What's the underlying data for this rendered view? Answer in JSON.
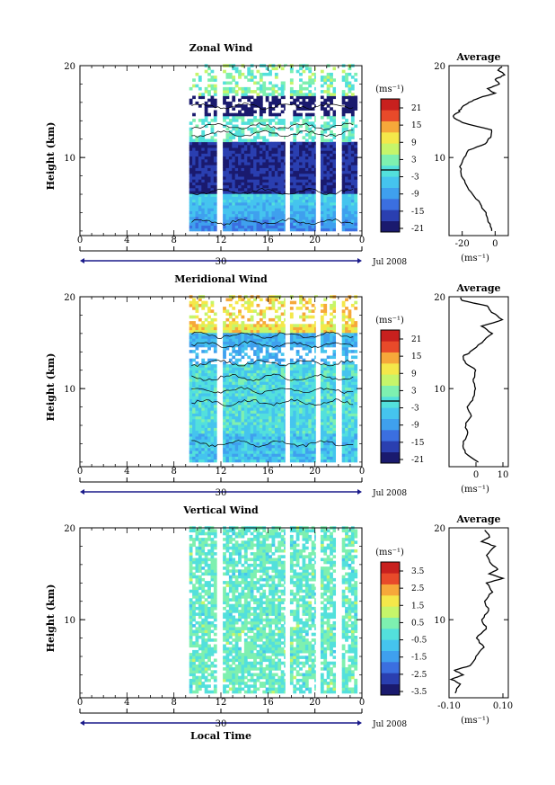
{
  "figure": {
    "xlabel": "Local Time",
    "date_label": "Jul 2008",
    "day_label": "30",
    "y_label": "Height (km)",
    "unit_label": "(ms⁻¹)",
    "avg_title": "Average"
  },
  "chart_data": [
    {
      "type": "heatmap",
      "title": "Zonal Wind",
      "ylabel": "Height (km)",
      "x_ticks": [
        "0",
        "4",
        "8",
        "12",
        "16",
        "20",
        "0"
      ],
      "y_ticks": [
        "20",
        "10"
      ],
      "xlim": [
        0,
        24
      ],
      "ylim": [
        1.5,
        20
      ],
      "colorbar": {
        "unit": "(ms⁻¹)",
        "ticks": [
          "21",
          "15",
          "9",
          "3",
          "-3",
          "-9",
          "-15",
          "-21"
        ],
        "range": [
          -24,
          24
        ]
      },
      "data_start_hour": 9.3,
      "profile": {
        "title": "Average",
        "xlabel": "(ms⁻¹)",
        "x_ticks": [
          "-20",
          "0"
        ],
        "xlim": [
          -28,
          8
        ],
        "heights": [
          2,
          3,
          4,
          5,
          6,
          7,
          8,
          9,
          10,
          10.8,
          11.5,
          12.2,
          13,
          13.8,
          14.5,
          15,
          15.5,
          16,
          16.5,
          17,
          17.5,
          18,
          18.5,
          19,
          19.5,
          20
        ],
        "values": [
          -2,
          -4,
          -6,
          -9,
          -14,
          -18,
          -20,
          -21,
          -19,
          -16,
          -6,
          -3,
          -2,
          -20,
          -26,
          -22,
          -20,
          -16,
          -10,
          0,
          -5,
          3,
          0,
          6,
          2,
          5
        ]
      }
    },
    {
      "type": "heatmap",
      "title": "Meridional Wind",
      "ylabel": "Height (km)",
      "x_ticks": [
        "0",
        "4",
        "8",
        "12",
        "16",
        "20",
        "0"
      ],
      "y_ticks": [
        "20",
        "10"
      ],
      "xlim": [
        0,
        24
      ],
      "ylim": [
        1.5,
        20
      ],
      "colorbar": {
        "unit": "(ms⁻¹)",
        "ticks": [
          "21",
          "15",
          "9",
          "3",
          "-3",
          "-9",
          "-15",
          "-21"
        ],
        "range": [
          -24,
          24
        ]
      },
      "data_start_hour": 9.3,
      "profile": {
        "title": "Average",
        "xlabel": "(ms⁻¹)",
        "x_ticks": [
          "0",
          "10"
        ],
        "xlim": [
          -10,
          12
        ],
        "heights": [
          2,
          3,
          4,
          5,
          6,
          7,
          8,
          9,
          10,
          11,
          12,
          12.8,
          13.5,
          14,
          15,
          16,
          16.8,
          17.5,
          18.3,
          19,
          19.6,
          20
        ],
        "values": [
          1,
          -4,
          -5,
          -3,
          -4,
          -2,
          -3,
          -1,
          0,
          -1,
          0,
          -4,
          -5,
          -2,
          2,
          6,
          2,
          10,
          6,
          4,
          -5,
          -6
        ]
      }
    },
    {
      "type": "heatmap",
      "title": "Vertical Wind",
      "ylabel": "Height (km)",
      "x_ticks": [
        "0",
        "4",
        "8",
        "12",
        "16",
        "20",
        "0"
      ],
      "y_ticks": [
        "20",
        "10"
      ],
      "xlim": [
        0,
        24
      ],
      "ylim": [
        1.5,
        20
      ],
      "colorbar": {
        "unit": "(ms⁻¹)",
        "ticks": [
          "3.5",
          "2.5",
          "1.5",
          "0.5",
          "-0.5",
          "-1.5",
          "-2.5",
          "-3.5"
        ],
        "range": [
          -4,
          4
        ]
      },
      "data_start_hour": 9.3,
      "profile": {
        "title": "Average",
        "xlabel": "(ms⁻¹)",
        "x_ticks": [
          "-0.10",
          "0.10"
        ],
        "xlim": [
          -0.1,
          0.12
        ],
        "heights": [
          2,
          3,
          3.5,
          4,
          4.5,
          5,
          6,
          7,
          8,
          9,
          10,
          11,
          12,
          13,
          14,
          14.5,
          15,
          15.5,
          16,
          17,
          18,
          18.5,
          19,
          20
        ],
        "values": [
          -0.08,
          -0.06,
          -0.09,
          -0.05,
          -0.08,
          -0.02,
          0.0,
          0.03,
          0.0,
          0.04,
          0.02,
          0.05,
          0.03,
          0.06,
          0.04,
          0.1,
          0.05,
          0.08,
          0.06,
          0.04,
          0.07,
          0.02,
          0.05,
          0.03
        ]
      }
    }
  ]
}
